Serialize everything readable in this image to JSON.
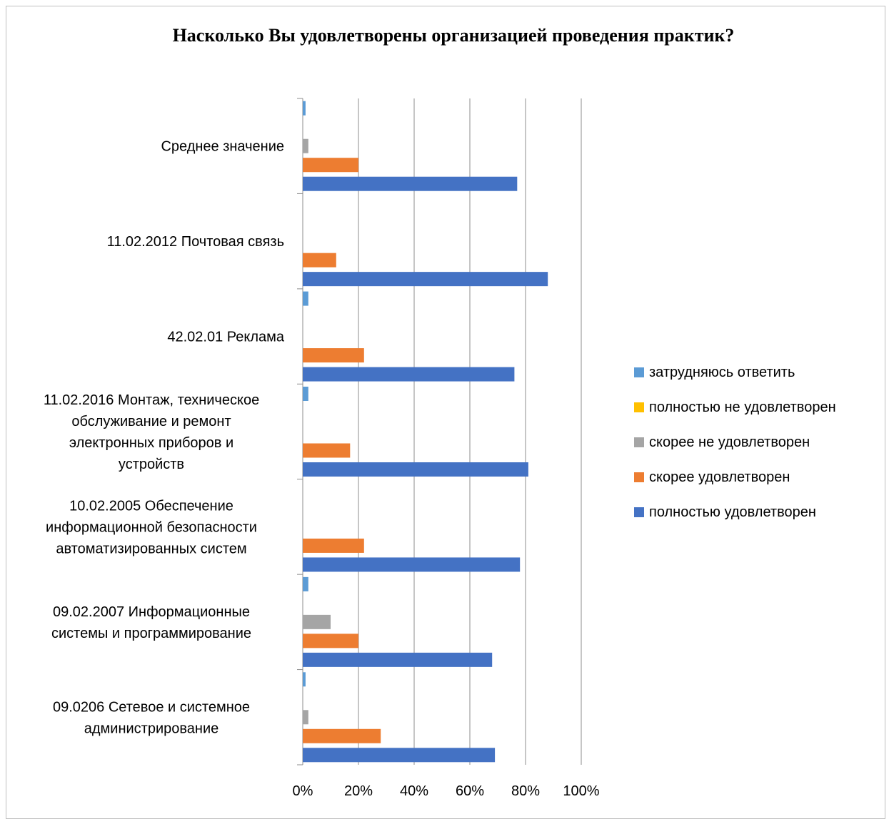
{
  "chart_data": {
    "type": "bar",
    "orientation": "horizontal",
    "title": "Насколько  Вы  удовлетворены организацией проведения практик?",
    "categories": [
      "Среднее значение",
      "11.02.2012 Почтовая связь",
      "42.02.01 Реклама",
      "11.02.2016 Монтаж, техническое обслуживание и ремонт электронных приборов и устройств",
      "10.02.2005 Обеспечение информационной безопасности автоматизированных систем",
      "09.02.2007 Информационные системы и программирование",
      "09.0206 Сетевое и системное администрирование"
    ],
    "category_lines": [
      [
        "Среднее значение"
      ],
      [
        "11.02.2012 Почтовая связь"
      ],
      [
        "42.02.01 Реклама"
      ],
      [
        "11.02.2016 Монтаж, техническое",
        "обслуживание и ремонт",
        "электронных приборов и",
        "устройств"
      ],
      [
        "10.02.2005 Обеспечение",
        "информационной безопасности",
        "автоматизированных систем"
      ],
      [
        "09.02.2007 Информационные",
        "системы и программирование"
      ],
      [
        "09.0206 Сетевое и системное",
        "администрирование"
      ]
    ],
    "series": [
      {
        "name": "затрудняюсь ответить",
        "color": "#5b9bd5",
        "values": [
          1,
          0,
          2,
          2,
          0,
          2,
          1
        ]
      },
      {
        "name": "полностью не удовлетворен",
        "color": "#ffc000",
        "values": [
          0,
          0,
          0,
          0,
          0,
          0,
          0
        ]
      },
      {
        "name": "скорее не удовлетворен",
        "color": "#a5a5a5",
        "values": [
          2,
          0,
          0,
          0,
          0,
          10,
          2
        ]
      },
      {
        "name": "скорее удовлетворен",
        "color": "#ed7d31",
        "values": [
          20,
          12,
          22,
          17,
          22,
          20,
          28
        ]
      },
      {
        "name": "полностью удовлетворен",
        "color": "#4472c4",
        "values": [
          77,
          88,
          76,
          81,
          78,
          68,
          69
        ]
      }
    ],
    "x_ticks": [
      "0%",
      "20%",
      "40%",
      "60%",
      "80%",
      "100%"
    ],
    "xlim": [
      0,
      100
    ],
    "grid": true,
    "legend": "right"
  }
}
